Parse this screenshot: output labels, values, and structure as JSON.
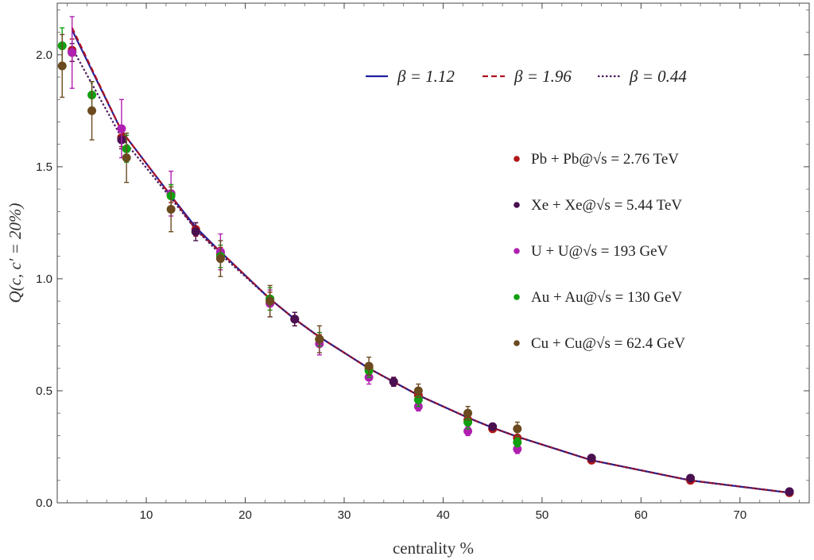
{
  "chart_data": {
    "type": "scatter",
    "xlabel": "centrality  %",
    "ylabel": "Q(c, c′ = 20%)",
    "xlim": [
      1,
      77
    ],
    "ylim": [
      0,
      2.23
    ],
    "x_ticks": [
      10,
      20,
      30,
      40,
      50,
      60,
      70
    ],
    "y_ticks": [
      0.0,
      0.5,
      1.0,
      1.5,
      2.0
    ],
    "x_tick_labels": [
      "10",
      "20",
      "30",
      "40",
      "50",
      "60",
      "70"
    ],
    "y_tick_labels": [
      "0.0",
      "0.5",
      "1.0",
      "1.5",
      "2.0"
    ],
    "grid": false,
    "legend_lines_position": "top-right",
    "legend_points_position": "right",
    "curves": [
      {
        "label": "β = 1.12",
        "color": "#1f1fa0",
        "dash": "solid",
        "x": [
          2.5,
          7.5,
          12.5,
          15,
          17.5,
          22.5,
          25,
          27.5,
          32.5,
          35,
          37.5,
          42.5,
          45,
          47.5,
          55,
          65,
          75
        ],
        "y": [
          2.11,
          1.66,
          1.37,
          1.23,
          1.12,
          0.91,
          0.82,
          0.74,
          0.6,
          0.54,
          0.48,
          0.38,
          0.335,
          0.295,
          0.19,
          0.1,
          0.045
        ]
      },
      {
        "label": "β = 1.96",
        "color": "#b01020",
        "dash": "dashed",
        "x": [
          2.5,
          7.5,
          12.5,
          15,
          17.5,
          22.5,
          25,
          27.5,
          32.5,
          35,
          37.5,
          42.5,
          45,
          47.5,
          55,
          65,
          75
        ],
        "y": [
          2.12,
          1.66,
          1.37,
          1.22,
          1.12,
          0.91,
          0.82,
          0.74,
          0.6,
          0.54,
          0.48,
          0.38,
          0.335,
          0.295,
          0.19,
          0.1,
          0.045
        ]
      },
      {
        "label": "β = 0.44",
        "color": "#4a1a60",
        "dash": "dotted",
        "x": [
          2.5,
          7.5,
          12.5,
          15,
          17.5,
          22.5,
          25,
          27.5,
          32.5,
          35,
          37.5,
          42.5,
          45,
          47.5,
          55,
          65,
          75
        ],
        "y": [
          2.03,
          1.63,
          1.36,
          1.22,
          1.11,
          0.91,
          0.82,
          0.74,
          0.6,
          0.54,
          0.48,
          0.38,
          0.335,
          0.295,
          0.19,
          0.1,
          0.045
        ]
      }
    ],
    "series": [
      {
        "label": "Pb + Pb@√s = 2.76 TeV",
        "color": "#b01818",
        "x": [
          2.5,
          7.5,
          12.5,
          15,
          17.5,
          22.5,
          25,
          27.5,
          32.5,
          35,
          37.5,
          42.5,
          45,
          47.5,
          55,
          65,
          75
        ],
        "y": [
          2.02,
          1.63,
          1.38,
          1.22,
          1.11,
          0.91,
          0.82,
          0.73,
          0.6,
          0.54,
          0.48,
          0.37,
          0.33,
          0.29,
          0.19,
          0.1,
          0.045
        ],
        "err": [
          0.05,
          0.04,
          0.04,
          0.03,
          0.03,
          0.03,
          0.03,
          0.02,
          0.02,
          0.02,
          0.02,
          0.02,
          0.01,
          0.01,
          0.01,
          0.01,
          0.01
        ]
      },
      {
        "label": "Xe + Xe@√s = 5.44 TeV",
        "color": "#4a1050",
        "x": [
          2.5,
          7.5,
          15,
          25,
          35,
          45,
          55,
          65,
          75
        ],
        "y": [
          2.01,
          1.62,
          1.21,
          0.82,
          0.54,
          0.34,
          0.2,
          0.11,
          0.05
        ],
        "err": [
          0.04,
          0.04,
          0.04,
          0.03,
          0.02,
          0.01,
          0.01,
          0.01,
          0.01
        ]
      },
      {
        "label": "U + U@√s = 193 GeV",
        "color": "#b020b0",
        "x": [
          2.5,
          7.5,
          12.5,
          17.5,
          22.5,
          27.5,
          32.5,
          37.5,
          42.5,
          47.5
        ],
        "y": [
          2.01,
          1.67,
          1.38,
          1.12,
          0.89,
          0.71,
          0.56,
          0.43,
          0.32,
          0.24
        ],
        "err": [
          0.16,
          0.13,
          0.1,
          0.08,
          0.06,
          0.05,
          0.03,
          0.02,
          0.02,
          0.02
        ]
      },
      {
        "label": "Au + Au@√s = 130 GeV",
        "color": "#10a010",
        "x": [
          1.5,
          4.5,
          8,
          12.5,
          17.5,
          22.5,
          27.5,
          32.5,
          37.5,
          42.5,
          47.5
        ],
        "y": [
          2.04,
          1.82,
          1.58,
          1.37,
          1.1,
          0.91,
          0.73,
          0.59,
          0.46,
          0.36,
          0.27
        ],
        "err": [
          0.08,
          0.06,
          0.06,
          0.05,
          0.05,
          0.05,
          0.03,
          0.03,
          0.03,
          0.03,
          0.02
        ]
      },
      {
        "label": "Cu + Cu@√s = 62.4 GeV",
        "color": "#6b4a20",
        "x": [
          1.5,
          4.5,
          8,
          12.5,
          17.5,
          22.5,
          27.5,
          32.5,
          37.5,
          42.5,
          47.5
        ],
        "y": [
          1.95,
          1.75,
          1.54,
          1.31,
          1.09,
          0.9,
          0.73,
          0.61,
          0.5,
          0.4,
          0.33
        ],
        "err": [
          0.14,
          0.13,
          0.11,
          0.1,
          0.08,
          0.07,
          0.06,
          0.04,
          0.03,
          0.03,
          0.03
        ]
      }
    ]
  }
}
